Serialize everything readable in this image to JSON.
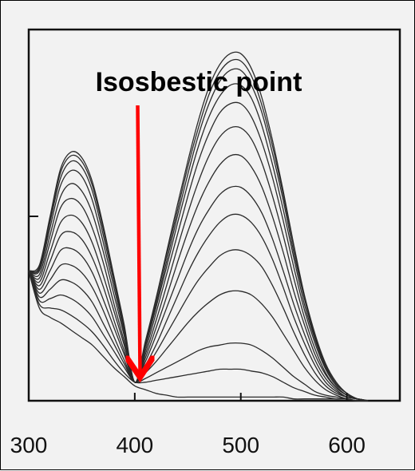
{
  "chart_data": {
    "type": "line",
    "title": "",
    "xlabel": "",
    "ylabel": "",
    "xlim": [
      300,
      650
    ],
    "ylim": [
      0,
      2.0
    ],
    "x_ticks": [
      300,
      400,
      500,
      600
    ],
    "x_tick_labels": [
      "300",
      "400",
      "500",
      "600"
    ],
    "grid": false,
    "legend": "none",
    "line_color": "#2a2a2a",
    "annotation": {
      "text": "Isosbestic point",
      "x": 405,
      "y": 0.12,
      "arrow_color": "#ff0000"
    },
    "x": [
      300,
      310,
      320,
      330,
      340,
      350,
      360,
      370,
      380,
      390,
      400,
      410,
      420,
      430,
      440,
      450,
      460,
      470,
      480,
      490,
      500,
      510,
      520,
      530,
      540,
      550,
      560,
      570,
      580,
      590,
      600,
      610,
      620
    ],
    "series": [
      {
        "values": [
          0.7,
          0.5,
          0.45,
          0.42,
          0.38,
          0.34,
          0.3,
          0.24,
          0.18,
          0.13,
          0.08,
          0.06,
          0.04,
          0.03,
          0.02,
          0.02,
          0.02,
          0.02,
          0.02,
          0.02,
          0.02,
          0.02,
          0.02,
          0.02,
          0.02,
          0.01,
          0.01,
          0.01,
          0.01,
          0.01,
          0.01,
          0.0,
          0.0
        ]
      },
      {
        "values": [
          0.7,
          0.52,
          0.5,
          0.49,
          0.46,
          0.42,
          0.37,
          0.3,
          0.22,
          0.15,
          0.1,
          0.1,
          0.11,
          0.12,
          0.13,
          0.14,
          0.15,
          0.16,
          0.17,
          0.17,
          0.17,
          0.16,
          0.15,
          0.13,
          0.1,
          0.07,
          0.05,
          0.03,
          0.02,
          0.01,
          0.01,
          0.0,
          0.0
        ]
      },
      {
        "values": [
          0.7,
          0.54,
          0.55,
          0.57,
          0.55,
          0.51,
          0.45,
          0.36,
          0.27,
          0.18,
          0.1,
          0.12,
          0.15,
          0.18,
          0.21,
          0.24,
          0.27,
          0.29,
          0.3,
          0.31,
          0.31,
          0.3,
          0.27,
          0.23,
          0.18,
          0.13,
          0.09,
          0.05,
          0.03,
          0.02,
          0.01,
          0.0,
          0.0
        ]
      },
      {
        "values": [
          0.7,
          0.56,
          0.6,
          0.65,
          0.64,
          0.6,
          0.53,
          0.42,
          0.31,
          0.2,
          0.1,
          0.15,
          0.21,
          0.28,
          0.35,
          0.42,
          0.48,
          0.53,
          0.57,
          0.59,
          0.59,
          0.57,
          0.52,
          0.45,
          0.36,
          0.27,
          0.18,
          0.11,
          0.06,
          0.03,
          0.01,
          0.0,
          0.0
        ]
      },
      {
        "values": [
          0.7,
          0.58,
          0.65,
          0.73,
          0.73,
          0.69,
          0.61,
          0.49,
          0.35,
          0.22,
          0.1,
          0.17,
          0.26,
          0.36,
          0.46,
          0.56,
          0.65,
          0.72,
          0.78,
          0.81,
          0.81,
          0.78,
          0.72,
          0.62,
          0.5,
          0.37,
          0.25,
          0.15,
          0.08,
          0.04,
          0.02,
          0.01,
          0.0
        ]
      },
      {
        "values": [
          0.7,
          0.6,
          0.7,
          0.81,
          0.82,
          0.78,
          0.69,
          0.55,
          0.4,
          0.25,
          0.1,
          0.19,
          0.3,
          0.43,
          0.56,
          0.69,
          0.8,
          0.89,
          0.96,
          1.0,
          1.0,
          0.96,
          0.88,
          0.76,
          0.61,
          0.45,
          0.31,
          0.19,
          0.1,
          0.05,
          0.02,
          0.01,
          0.0
        ]
      },
      {
        "values": [
          0.7,
          0.62,
          0.75,
          0.89,
          0.91,
          0.87,
          0.77,
          0.62,
          0.44,
          0.27,
          0.1,
          0.21,
          0.35,
          0.5,
          0.65,
          0.8,
          0.93,
          1.03,
          1.11,
          1.15,
          1.15,
          1.1,
          1.01,
          0.87,
          0.7,
          0.52,
          0.36,
          0.22,
          0.12,
          0.06,
          0.02,
          0.01,
          0.0
        ]
      },
      {
        "values": [
          0.7,
          0.64,
          0.8,
          0.96,
          1.0,
          0.96,
          0.85,
          0.68,
          0.49,
          0.3,
          0.1,
          0.23,
          0.39,
          0.56,
          0.74,
          0.91,
          1.06,
          1.18,
          1.27,
          1.32,
          1.32,
          1.26,
          1.15,
          0.99,
          0.8,
          0.59,
          0.41,
          0.25,
          0.14,
          0.07,
          0.03,
          0.01,
          0.0
        ]
      },
      {
        "values": [
          0.7,
          0.66,
          0.85,
          1.04,
          1.09,
          1.05,
          0.93,
          0.75,
          0.53,
          0.32,
          0.1,
          0.25,
          0.43,
          0.62,
          0.82,
          1.01,
          1.18,
          1.32,
          1.42,
          1.47,
          1.47,
          1.41,
          1.28,
          1.1,
          0.89,
          0.66,
          0.45,
          0.28,
          0.15,
          0.07,
          0.03,
          0.01,
          0.0
        ]
      },
      {
        "values": [
          0.7,
          0.68,
          0.89,
          1.1,
          1.17,
          1.13,
          1.01,
          0.81,
          0.58,
          0.35,
          0.1,
          0.27,
          0.47,
          0.68,
          0.89,
          1.1,
          1.29,
          1.44,
          1.55,
          1.6,
          1.6,
          1.53,
          1.39,
          1.2,
          0.97,
          0.72,
          0.49,
          0.31,
          0.17,
          0.08,
          0.03,
          0.01,
          0.0
        ]
      },
      {
        "values": [
          0.7,
          0.7,
          0.93,
          1.16,
          1.24,
          1.21,
          1.08,
          0.86,
          0.62,
          0.37,
          0.1,
          0.29,
          0.5,
          0.72,
          0.95,
          1.17,
          1.37,
          1.53,
          1.64,
          1.7,
          1.7,
          1.63,
          1.48,
          1.27,
          1.03,
          0.77,
          0.52,
          0.33,
          0.18,
          0.09,
          0.04,
          0.01,
          0.0
        ]
      },
      {
        "values": [
          0.7,
          0.71,
          0.96,
          1.2,
          1.29,
          1.26,
          1.13,
          0.9,
          0.65,
          0.39,
          0.1,
          0.3,
          0.52,
          0.75,
          0.99,
          1.22,
          1.43,
          1.6,
          1.72,
          1.78,
          1.78,
          1.7,
          1.55,
          1.33,
          1.08,
          0.8,
          0.55,
          0.34,
          0.19,
          0.09,
          0.04,
          0.01,
          0.0
        ]
      },
      {
        "values": [
          0.7,
          0.72,
          0.98,
          1.23,
          1.32,
          1.29,
          1.16,
          0.93,
          0.67,
          0.4,
          0.1,
          0.31,
          0.54,
          0.78,
          1.02,
          1.26,
          1.47,
          1.65,
          1.77,
          1.83,
          1.83,
          1.75,
          1.59,
          1.37,
          1.11,
          0.83,
          0.56,
          0.35,
          0.19,
          0.09,
          0.04,
          0.01,
          0.0
        ]
      },
      {
        "values": [
          0.7,
          0.73,
          0.99,
          1.25,
          1.34,
          1.31,
          1.18,
          0.95,
          0.68,
          0.41,
          0.1,
          0.32,
          0.55,
          0.8,
          1.05,
          1.29,
          1.51,
          1.69,
          1.81,
          1.87,
          1.87,
          1.79,
          1.63,
          1.4,
          1.13,
          0.84,
          0.57,
          0.36,
          0.2,
          0.1,
          0.04,
          0.01,
          0.0
        ]
      }
    ]
  }
}
